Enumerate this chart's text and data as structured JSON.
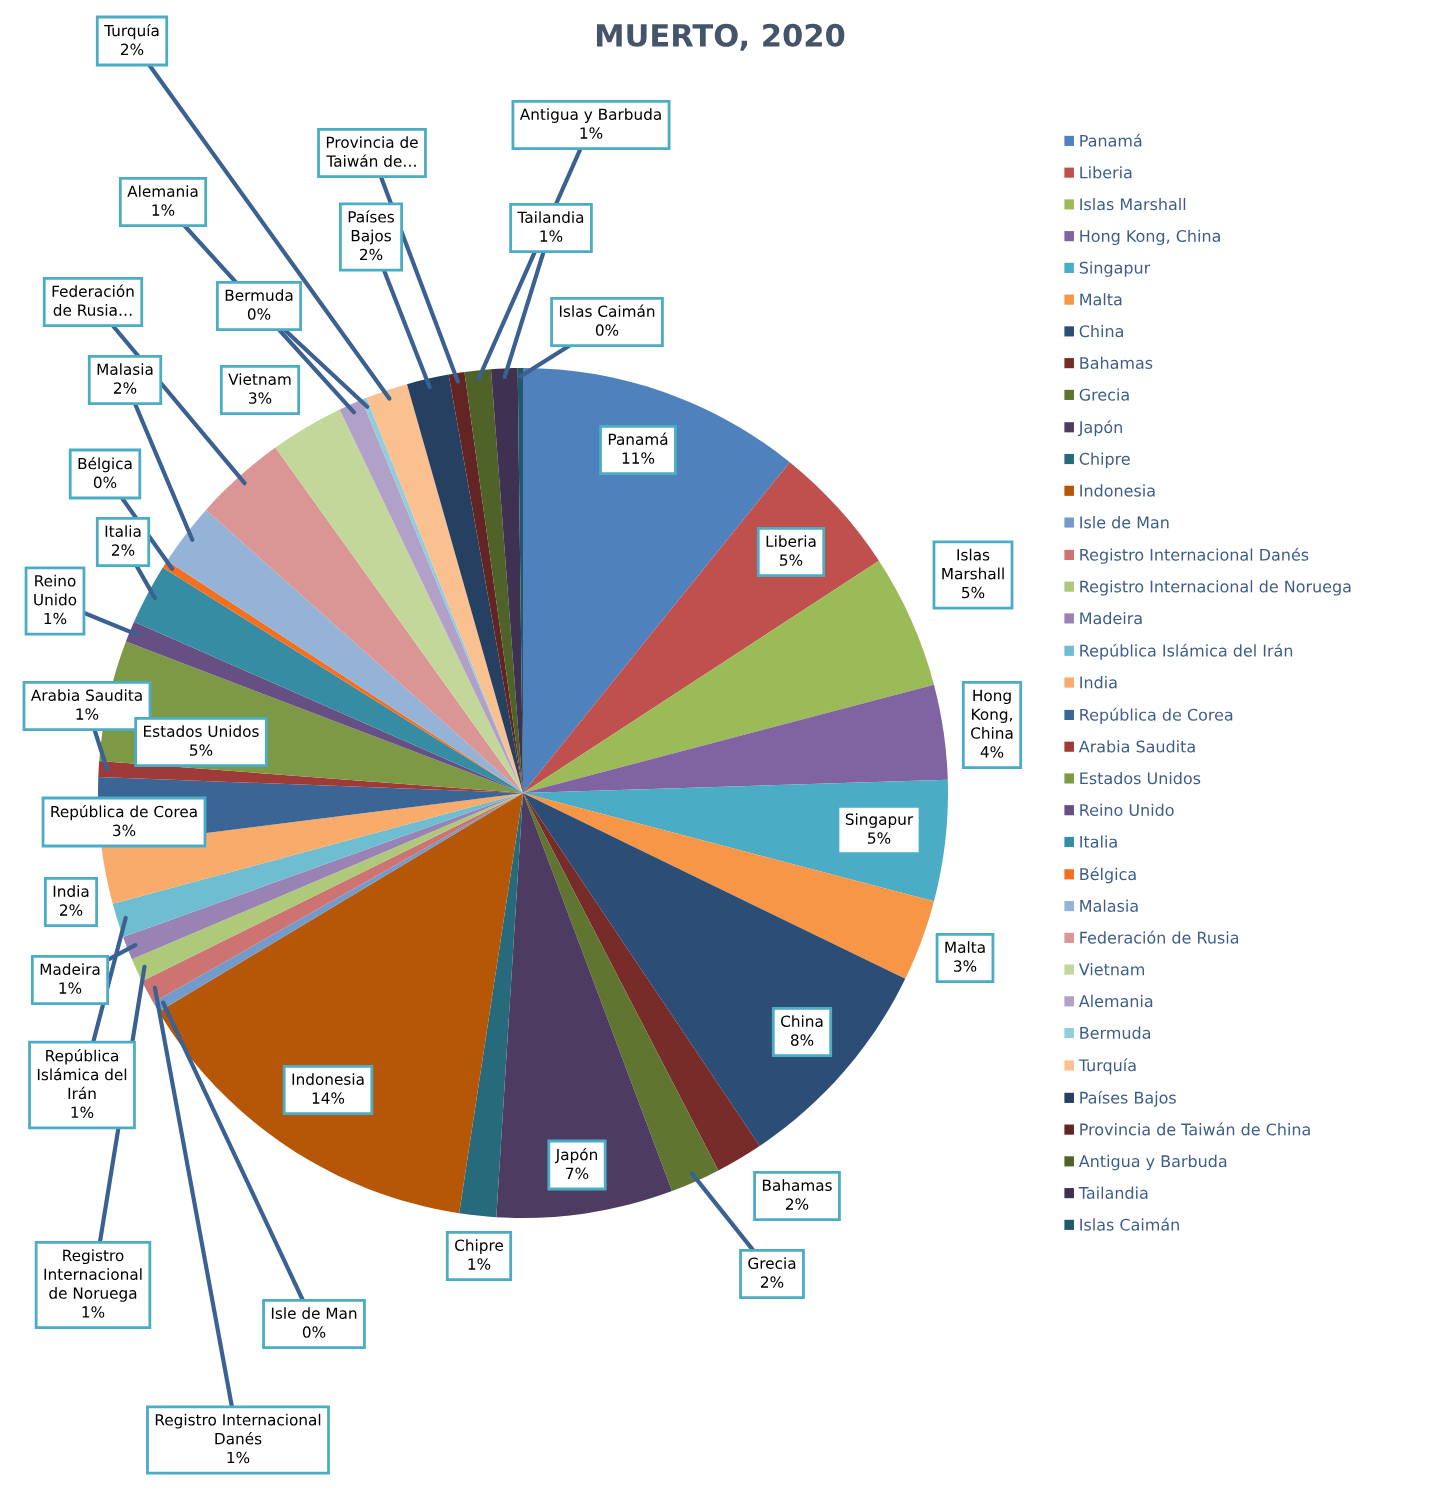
{
  "chart_data": {
    "type": "pie",
    "title": "MUERTO, 2020",
    "legend": "right",
    "categories": [
      "Panamá",
      "Liberia",
      "Islas Marshall",
      "Hong Kong, China",
      "Singapur",
      "Malta",
      "China",
      "Bahamas",
      "Grecia",
      "Japón",
      "Chipre",
      "Indonesia",
      "Isle de Man",
      "Registro Internacional Danés",
      "Registro Internacional de Noruega",
      "Madeira",
      "República Islámica del Irán",
      "India",
      "República de Corea",
      "Arabia Saudita",
      "Estados Unidos",
      "Reino Unido",
      "Italia",
      "Bélgica",
      "Malasia",
      "Federación de Rusia",
      "Vietnam",
      "Alemania",
      "Bermuda",
      "Turquía",
      "Países Bajos",
      "Provincia de Taiwán de China",
      "Antigua y Barbuda",
      "Tailandia",
      "Islas Caimán"
    ],
    "values": [
      10.8,
      5.0,
      5.1,
      3.6,
      4.6,
      3.1,
      8.4,
      1.8,
      1.9,
      6.7,
      1.4,
      14.0,
      0.4,
      0.9,
      0.9,
      0.9,
      1.3,
      2.2,
      2.6,
      0.6,
      4.6,
      0.8,
      2.3,
      0.3,
      2.4,
      3.5,
      2.8,
      0.9,
      0.2,
      1.6,
      1.6,
      0.6,
      1.0,
      1.0,
      0.2
    ],
    "colors": [
      "#4f81bd",
      "#c0504d",
      "#9bbb59",
      "#8064a2",
      "#4bacc6",
      "#f79646",
      "#2c4d75",
      "#772c2a",
      "#5f7530",
      "#4d3b62",
      "#276a7c",
      "#b65708",
      "#729aca",
      "#cd7371",
      "#afc97a",
      "#9983b5",
      "#6fbdd1",
      "#f9ab6b",
      "#3a6595",
      "#9e3b38",
      "#7e9945",
      "#664f83",
      "#358ca3",
      "#f37021",
      "#95b3d7",
      "#da9694",
      "#c4d79b",
      "#b1a0c7",
      "#92cddc",
      "#fac090",
      "#254061",
      "#632523",
      "#4f6228",
      "#3f3151",
      "#215968"
    ],
    "value_labels": [
      "Panamá\n11%",
      "Liberia\n5%",
      "Islas\nMarshall\n5%",
      "Hong\nKong,\nChina\n4%",
      "Singapur\n5%",
      "Malta\n3%",
      "China\n8%",
      "Bahamas\n2%",
      "Grecia\n2%",
      "Japón\n7%",
      "Chipre\n1%",
      "Indonesia\n14%",
      "Isle de Man\n0%",
      "Registro Internacional\nDanés\n1%",
      "Registro\nInternacional\nde Noruega\n1%",
      "Madeira\n1%",
      "República\nIslámica del\nIrán\n1%",
      "India\n2%",
      "República de Corea\n3%",
      "Arabia Saudita\n1%",
      "Estados Unidos\n5%",
      "Reino\nUnido\n1%",
      "Italia\n2%",
      "Bélgica\n0%",
      "Malasia\n2%",
      "Federación\nde Rusia…",
      "Vietnam\n3%",
      "Alemania\n1%",
      "Bermuda\n0%",
      "Turquía\n2%",
      "Países\nBajos\n2%",
      "Provincia de\nTaiwán de…",
      "Antigua y Barbuda\n1%",
      "Tailandia\n1%",
      "Islas Caimán\n0%"
    ]
  }
}
